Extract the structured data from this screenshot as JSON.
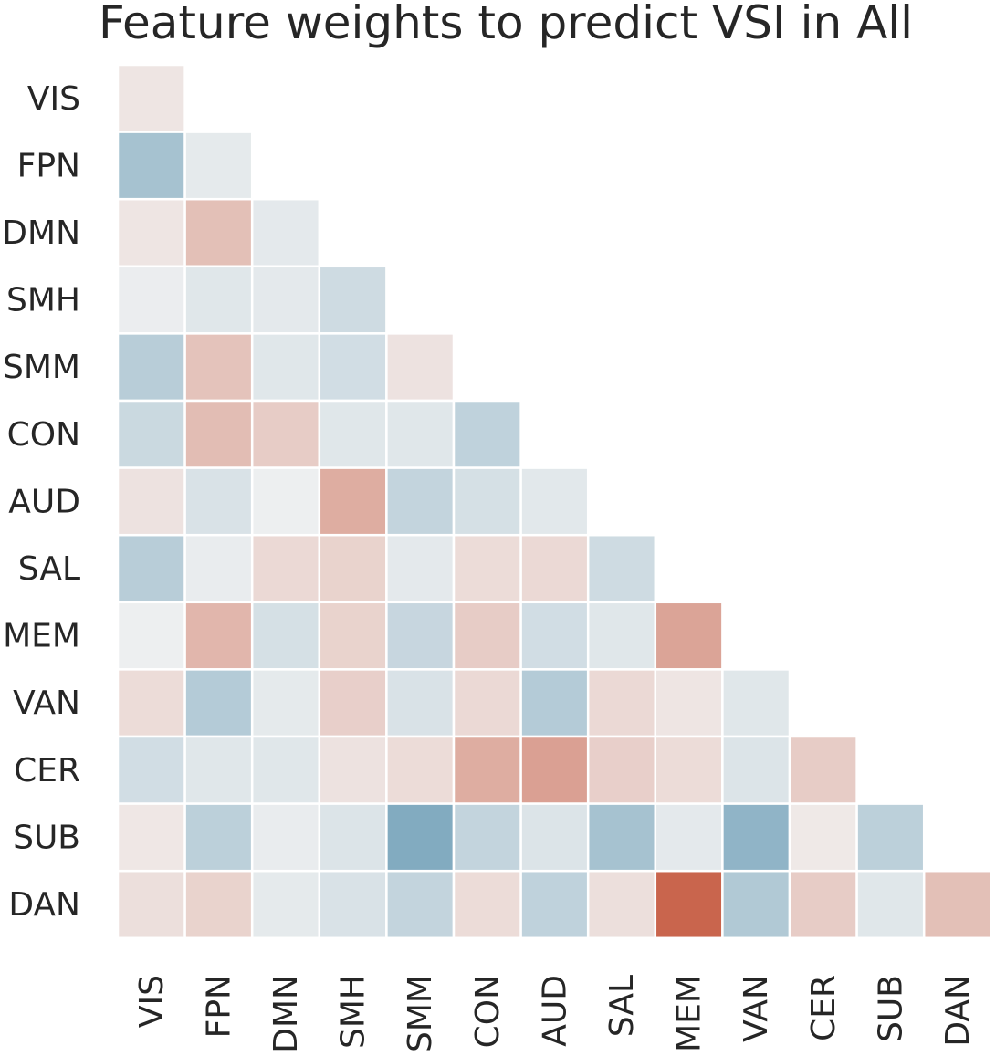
{
  "chart_data": {
    "type": "heatmap",
    "title": "Feature weights to predict VSI in All",
    "row_labels": [
      "VIS",
      "FPN",
      "DMN",
      "SMH",
      "SMM",
      "CON",
      "AUD",
      "SAL",
      "MEM",
      "VAN",
      "CER",
      "SUB",
      "DAN"
    ],
    "col_labels": [
      "VIS",
      "FPN",
      "DMN",
      "SMH",
      "SMM",
      "CON",
      "AUD",
      "SAL",
      "MEM",
      "VAN",
      "CER",
      "SUB",
      "DAN"
    ],
    "mask": "upper-triangle",
    "colormap": {
      "negative": "#3d7fa2",
      "neutral": "#f2f2f2",
      "positive": "#c4553b"
    },
    "value_range": [
      -1,
      1
    ],
    "colorbar": false,
    "values": [
      [
        0.08
      ],
      [
        -0.42,
        -0.07
      ],
      [
        0.08,
        0.32,
        -0.08
      ],
      [
        -0.04,
        -0.1,
        -0.08,
        -0.2
      ],
      [
        -0.32,
        0.3,
        -0.1,
        -0.18,
        0.1
      ],
      [
        -0.22,
        0.34,
        0.24,
        -0.1,
        -0.1,
        -0.28
      ],
      [
        0.1,
        -0.14,
        -0.03,
        0.44,
        -0.26,
        -0.16,
        -0.09
      ],
      [
        -0.32,
        -0.05,
        0.16,
        0.2,
        -0.08,
        0.14,
        0.16,
        -0.2
      ],
      [
        -0.03,
        0.38,
        -0.16,
        0.2,
        -0.24,
        0.24,
        -0.18,
        -0.1,
        0.5
      ],
      [
        0.14,
        -0.34,
        -0.07,
        0.22,
        -0.14,
        0.16,
        -0.34,
        0.16,
        0.08,
        -0.1
      ],
      [
        -0.18,
        -0.1,
        -0.1,
        0.1,
        0.14,
        0.44,
        0.52,
        0.22,
        0.14,
        -0.12,
        0.24
      ],
      [
        0.07,
        -0.3,
        -0.05,
        -0.12,
        -0.62,
        -0.26,
        -0.12,
        -0.42,
        -0.08,
        -0.54,
        0.06,
        -0.3
      ],
      [
        0.12,
        0.2,
        -0.07,
        -0.14,
        -0.26,
        0.14,
        -0.28,
        0.12,
        0.9,
        -0.36,
        0.24,
        -0.1,
        0.32
      ]
    ]
  }
}
